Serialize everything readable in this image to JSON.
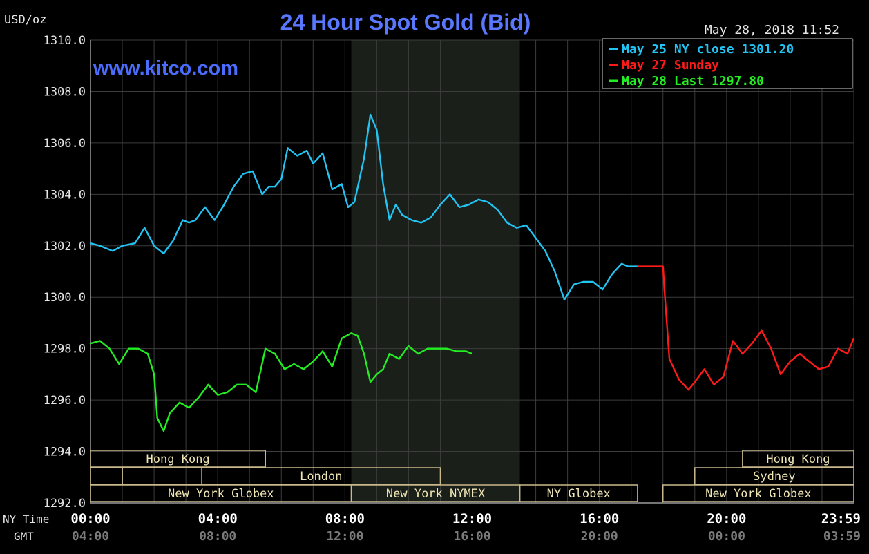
{
  "chart_data": {
    "type": "line",
    "title": "24 Hour Spot Gold (Bid)",
    "watermark": "www.kitco.com",
    "unit_label": "USD/oz",
    "timestamp": "May 28, 2018 11:52",
    "ylim": [
      1292.0,
      1310.0
    ],
    "y_ticks": [
      "1310.0",
      "1308.0",
      "1306.0",
      "1304.0",
      "1302.0",
      "1300.0",
      "1298.0",
      "1296.0",
      "1294.0",
      "1292.0"
    ],
    "y_tick_values": [
      1310,
      1308,
      1306,
      1304,
      1302,
      1300,
      1298,
      1296,
      1294,
      1292
    ],
    "x_axis_label": "NY Time",
    "x_axis_label_2": "GMT",
    "x_ticks_ny": [
      "00:00",
      "04:00",
      "08:00",
      "12:00",
      "16:00",
      "20:00",
      "23:59"
    ],
    "x_ticks_gmt": [
      "04:00",
      "08:00",
      "12:00",
      "16:00",
      "20:00",
      "00:00",
      "03:59"
    ],
    "x_tick_hours": [
      0,
      4,
      8,
      12,
      16,
      20,
      24
    ],
    "xlim_hours": [
      0,
      24
    ],
    "grid": true,
    "shaded_band_hours": [
      8.2,
      13.5
    ],
    "legend": {
      "placement": "top-right",
      "items": [
        {
          "text": "May 25 NY close 1301.20",
          "color": "#22c4f4"
        },
        {
          "text": "May 27 Sunday",
          "color": "#ff1a1a"
        },
        {
          "text": "May 28 Last 1297.80",
          "color": "#22ee22"
        }
      ]
    },
    "series": [
      {
        "name": "May 25 NY close 1301.20",
        "color": "#22c4f4",
        "x": [
          0,
          0.3,
          0.7,
          1.0,
          1.4,
          1.7,
          2.0,
          2.3,
          2.6,
          2.9,
          3.1,
          3.3,
          3.6,
          3.9,
          4.2,
          4.5,
          4.8,
          5.1,
          5.4,
          5.6,
          5.8,
          6.0,
          6.2,
          6.5,
          6.8,
          7.0,
          7.3,
          7.6,
          7.9,
          8.1,
          8.3,
          8.6,
          8.8,
          9.0,
          9.2,
          9.4,
          9.6,
          9.8,
          10.1,
          10.4,
          10.7,
          11.0,
          11.3,
          11.6,
          11.9,
          12.2,
          12.5,
          12.8,
          13.1,
          13.4,
          13.7,
          14.0,
          14.3,
          14.6,
          14.9,
          15.2,
          15.5,
          15.8,
          16.1,
          16.4,
          16.7,
          16.9,
          17.0,
          17.2
        ],
        "values": [
          1302.1,
          1302.0,
          1301.8,
          1302.0,
          1302.1,
          1302.7,
          1302.0,
          1301.7,
          1302.2,
          1303.0,
          1302.9,
          1303.0,
          1303.5,
          1303.0,
          1303.6,
          1304.3,
          1304.8,
          1304.9,
          1304.0,
          1304.3,
          1304.3,
          1304.6,
          1305.8,
          1305.5,
          1305.7,
          1305.2,
          1305.6,
          1304.2,
          1304.4,
          1303.5,
          1303.7,
          1305.4,
          1307.1,
          1306.5,
          1304.4,
          1303.0,
          1303.6,
          1303.2,
          1303.0,
          1302.9,
          1303.1,
          1303.6,
          1304.0,
          1303.5,
          1303.6,
          1303.8,
          1303.7,
          1303.4,
          1302.9,
          1302.7,
          1302.8,
          1302.3,
          1301.8,
          1301.0,
          1299.9,
          1300.5,
          1300.6,
          1300.6,
          1300.3,
          1300.9,
          1301.3,
          1301.2,
          1301.2,
          1301.2
        ]
      },
      {
        "name": "May 27 Sunday",
        "color": "#ff1a1a",
        "x": [
          17.2,
          17.6,
          18.0,
          18.05,
          18.2,
          18.5,
          18.8,
          19.0,
          19.3,
          19.6,
          19.9,
          20.2,
          20.5,
          20.8,
          21.1,
          21.4,
          21.7,
          22.0,
          22.3,
          22.6,
          22.9,
          23.2,
          23.5,
          23.8,
          24.0
        ],
        "values": [
          1301.2,
          1301.2,
          1301.2,
          1300.2,
          1297.6,
          1296.8,
          1296.4,
          1296.7,
          1297.2,
          1296.6,
          1296.9,
          1298.3,
          1297.8,
          1298.2,
          1298.7,
          1298.0,
          1297.0,
          1297.5,
          1297.8,
          1297.5,
          1297.2,
          1297.3,
          1298.0,
          1297.8,
          1298.4
        ]
      },
      {
        "name": "May 28 Last 1297.80",
        "color": "#22ee22",
        "x": [
          0,
          0.3,
          0.6,
          0.9,
          1.2,
          1.5,
          1.8,
          2.0,
          2.1,
          2.3,
          2.5,
          2.8,
          3.1,
          3.4,
          3.7,
          4.0,
          4.3,
          4.6,
          4.9,
          5.2,
          5.5,
          5.8,
          6.1,
          6.4,
          6.7,
          7.0,
          7.3,
          7.6,
          7.9,
          8.2,
          8.4,
          8.6,
          8.8,
          9.0,
          9.2,
          9.4,
          9.7,
          10.0,
          10.3,
          10.6,
          10.9,
          11.2,
          11.5,
          11.8,
          12.0
        ],
        "values": [
          1298.2,
          1298.3,
          1298.0,
          1297.4,
          1298.0,
          1298.0,
          1297.8,
          1297.0,
          1295.3,
          1294.8,
          1295.5,
          1295.9,
          1295.7,
          1296.1,
          1296.6,
          1296.2,
          1296.3,
          1296.6,
          1296.6,
          1296.3,
          1298.0,
          1297.8,
          1297.2,
          1297.4,
          1297.2,
          1297.5,
          1297.9,
          1297.3,
          1298.4,
          1298.6,
          1298.5,
          1297.8,
          1296.7,
          1297.0,
          1297.2,
          1297.8,
          1297.6,
          1298.1,
          1297.8,
          1298.0,
          1298.0,
          1298.0,
          1297.9,
          1297.9,
          1297.8
        ]
      }
    ],
    "sessions": [
      {
        "label": "Hong Kong",
        "row": 0,
        "start": 0.0,
        "end": 5.5
      },
      {
        "label": "Hong Kong",
        "row": 0,
        "start": 20.5,
        "end": 24.0
      },
      {
        "label": "",
        "row": 1,
        "start": 0.0,
        "end": 1.0
      },
      {
        "label": "",
        "row": 1,
        "start": 1.0,
        "end": 3.5
      },
      {
        "label": "London",
        "row": 1,
        "start": 3.5,
        "end": 11.0
      },
      {
        "label": "Sydney",
        "row": 1,
        "start": 19.0,
        "end": 24.0
      },
      {
        "label": "New York Globex",
        "row": 2,
        "start": 0.0,
        "end": 8.2
      },
      {
        "label": "New York NYMEX",
        "row": 2,
        "start": 8.2,
        "end": 13.5
      },
      {
        "label": "NY Globex",
        "row": 2,
        "start": 13.5,
        "end": 17.2
      },
      {
        "label": "New York Globex",
        "row": 2,
        "start": 18.0,
        "end": 24.0
      }
    ]
  }
}
